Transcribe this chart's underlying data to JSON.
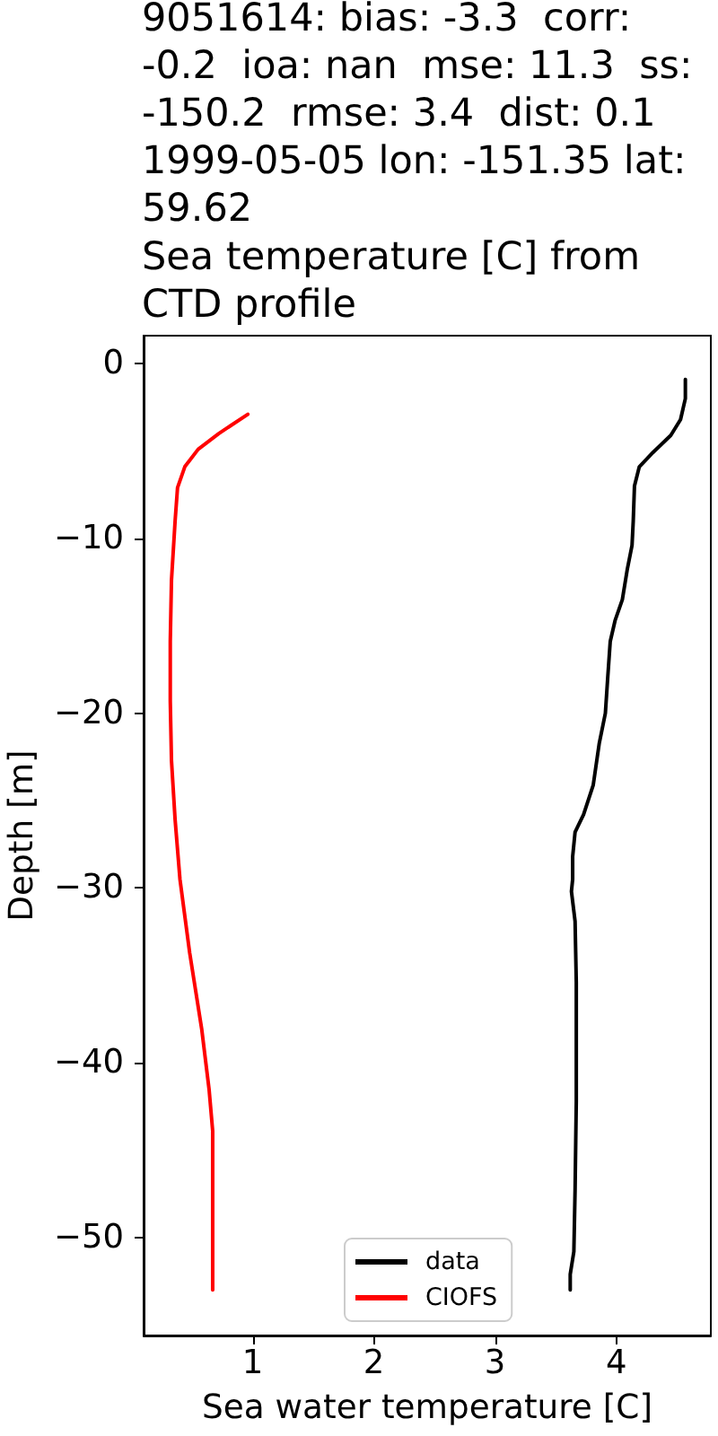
{
  "chart_data": {
    "type": "line",
    "title": "9051614: bias: -3.3  corr:\n-0.2  ioa: nan  mse: 11.3  ss:\n-150.2  rmse: 3.4  dist: 0.1\n1999-05-05 lon: -151.35 lat:\n59.62\nSea temperature [C] from\nCTD profile",
    "xlabel": "Sea water temperature [C]",
    "ylabel": "Depth [m]",
    "xlim": [
      0.1,
      4.78
    ],
    "ylim": [
      -55.6,
      1.6
    ],
    "xticks": [
      1,
      2,
      3,
      4
    ],
    "yticks": [
      -50,
      -40,
      -30,
      -20,
      -10,
      0
    ],
    "legend": "bottom",
    "marker": "none",
    "line_style": "solid",
    "series": [
      {
        "name": "data",
        "color": "#000000",
        "x": [
          4.57,
          4.57,
          4.53,
          4.45,
          4.3,
          4.19,
          4.15,
          4.14,
          4.13,
          4.09,
          4.05,
          3.99,
          3.95,
          3.93,
          3.91,
          3.86,
          3.81,
          3.73,
          3.66,
          3.64,
          3.64,
          3.63,
          3.66,
          3.67,
          3.67,
          3.66,
          3.65,
          3.62,
          3.62
        ],
        "values": [
          -0.9,
          -2.0,
          -3.2,
          -4.1,
          -5.1,
          -5.9,
          -7.0,
          -9.0,
          -10.4,
          -11.8,
          -13.5,
          -14.7,
          -15.9,
          -17.9,
          -20.0,
          -21.7,
          -24.1,
          -25.8,
          -26.8,
          -28.2,
          -29.5,
          -30.2,
          -31.9,
          -35.4,
          -42.2,
          -47.3,
          -50.8,
          -52.1,
          -53.0
        ]
      },
      {
        "name": "CIOFS",
        "color": "#ff0000",
        "x": [
          0.96,
          0.72,
          0.55,
          0.44,
          0.38,
          0.36,
          0.33,
          0.32,
          0.32,
          0.33,
          0.36,
          0.4,
          0.48,
          0.58,
          0.64,
          0.67,
          0.67,
          0.67
        ],
        "values": [
          -2.9,
          -4.0,
          -4.9,
          -5.9,
          -7.1,
          -9.0,
          -12.4,
          -15.9,
          -19.3,
          -22.7,
          -26.1,
          -29.5,
          -33.7,
          -38.1,
          -41.5,
          -43.9,
          -47.3,
          -53.0
        ]
      }
    ]
  }
}
